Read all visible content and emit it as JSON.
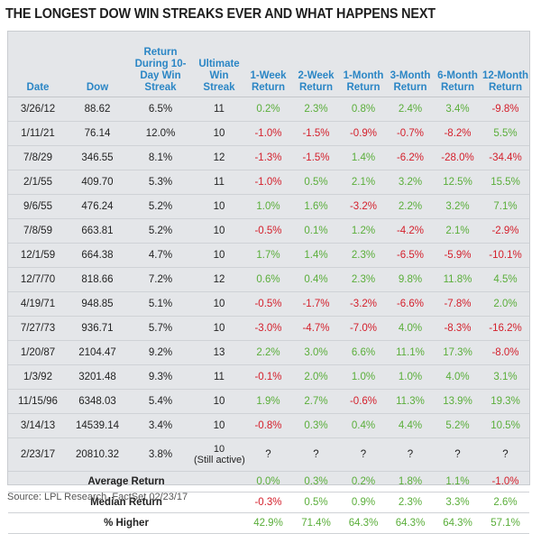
{
  "title": "THE LONGEST DOW WIN STREAKS EVER AND WHAT HAPPENS NEXT",
  "headers": [
    "Date",
    "Dow",
    "Return During 10-Day Win Streak",
    "Ultimate Win Streak",
    "1-Week Return",
    "2-Week Return",
    "1-Month Return",
    "3-Month Return",
    "6-Month Return",
    "12-Month Return"
  ],
  "rows": [
    {
      "date": "3/26/12",
      "dow": "88.62",
      "streak_return": "6.5%",
      "ultimate": "11",
      "returns": [
        "0.2%",
        "2.3%",
        "0.8%",
        "2.4%",
        "3.4%",
        "-9.8%"
      ]
    },
    {
      "date": "1/11/21",
      "dow": "76.14",
      "streak_return": "12.0%",
      "ultimate": "10",
      "returns": [
        "-1.0%",
        "-1.5%",
        "-0.9%",
        "-0.7%",
        "-8.2%",
        "5.5%"
      ]
    },
    {
      "date": "7/8/29",
      "dow": "346.55",
      "streak_return": "8.1%",
      "ultimate": "12",
      "returns": [
        "-1.3%",
        "-1.5%",
        "1.4%",
        "-6.2%",
        "-28.0%",
        "-34.4%"
      ]
    },
    {
      "date": "2/1/55",
      "dow": "409.70",
      "streak_return": "5.3%",
      "ultimate": "11",
      "returns": [
        "-1.0%",
        "0.5%",
        "2.1%",
        "3.2%",
        "12.5%",
        "15.5%"
      ]
    },
    {
      "date": "9/6/55",
      "dow": "476.24",
      "streak_return": "5.2%",
      "ultimate": "10",
      "returns": [
        "1.0%",
        "1.6%",
        "-3.2%",
        "2.2%",
        "3.2%",
        "7.1%"
      ]
    },
    {
      "date": "7/8/59",
      "dow": "663.81",
      "streak_return": "5.2%",
      "ultimate": "10",
      "returns": [
        "-0.5%",
        "0.1%",
        "1.2%",
        "-4.2%",
        "2.1%",
        "-2.9%"
      ]
    },
    {
      "date": "12/1/59",
      "dow": "664.38",
      "streak_return": "4.7%",
      "ultimate": "10",
      "returns": [
        "1.7%",
        "1.4%",
        "2.3%",
        "-6.5%",
        "-5.9%",
        "-10.1%"
      ]
    },
    {
      "date": "12/7/70",
      "dow": "818.66",
      "streak_return": "7.2%",
      "ultimate": "12",
      "returns": [
        "0.6%",
        "0.4%",
        "2.3%",
        "9.8%",
        "11.8%",
        "4.5%"
      ]
    },
    {
      "date": "4/19/71",
      "dow": "948.85",
      "streak_return": "5.1%",
      "ultimate": "10",
      "returns": [
        "-0.5%",
        "-1.7%",
        "-3.2%",
        "-6.6%",
        "-7.8%",
        "2.0%"
      ]
    },
    {
      "date": "7/27/73",
      "dow": "936.71",
      "streak_return": "5.7%",
      "ultimate": "10",
      "returns": [
        "-3.0%",
        "-4.7%",
        "-7.0%",
        "4.0%",
        "-8.3%",
        "-16.2%"
      ]
    },
    {
      "date": "1/20/87",
      "dow": "2104.47",
      "streak_return": "9.2%",
      "ultimate": "13",
      "returns": [
        "2.2%",
        "3.0%",
        "6.6%",
        "11.1%",
        "17.3%",
        "-8.0%"
      ]
    },
    {
      "date": "1/3/92",
      "dow": "3201.48",
      "streak_return": "9.3%",
      "ultimate": "11",
      "returns": [
        "-0.1%",
        "2.0%",
        "1.0%",
        "1.0%",
        "4.0%",
        "3.1%"
      ]
    },
    {
      "date": "11/15/96",
      "dow": "6348.03",
      "streak_return": "5.4%",
      "ultimate": "10",
      "returns": [
        "1.9%",
        "2.7%",
        "-0.6%",
        "11.3%",
        "13.9%",
        "19.3%"
      ]
    },
    {
      "date": "3/14/13",
      "dow": "14539.14",
      "streak_return": "3.4%",
      "ultimate": "10",
      "returns": [
        "-0.8%",
        "0.3%",
        "0.4%",
        "4.4%",
        "5.2%",
        "10.5%"
      ]
    }
  ],
  "current_row": {
    "date": "2/23/17",
    "dow": "20810.32",
    "streak_return": "3.8%",
    "ultimate": "10",
    "ultimate_note": "(Still active)",
    "returns": [
      "?",
      "?",
      "?",
      "?",
      "?",
      "?"
    ]
  },
  "stats": [
    {
      "label": "Average Return",
      "values": [
        "0.0%",
        "0.3%",
        "0.2%",
        "1.8%",
        "1.1%",
        "-1.0%"
      ]
    },
    {
      "label": "Median Return",
      "values": [
        "-0.3%",
        "0.5%",
        "0.9%",
        "2.3%",
        "3.3%",
        "2.6%"
      ]
    },
    {
      "label": "% Higher",
      "values": [
        "42.9%",
        "71.4%",
        "64.3%",
        "64.3%",
        "64.3%",
        "57.1%"
      ]
    }
  ],
  "source": "Source: LPL Research, FactSet   02/23/17",
  "colors": {
    "header": "#2b86c5",
    "positive": "#5aae3a",
    "negative": "#d4202c",
    "panel": "#e4e6e9"
  }
}
